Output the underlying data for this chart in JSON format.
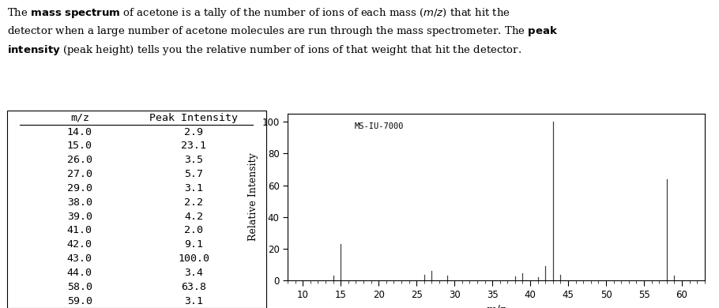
{
  "mz_values": [
    14.0,
    15.0,
    26.0,
    27.0,
    29.0,
    38.0,
    39.0,
    41.0,
    42.0,
    43.0,
    44.0,
    58.0,
    59.0
  ],
  "intensities": [
    2.9,
    23.1,
    3.5,
    5.7,
    3.1,
    2.2,
    4.2,
    2.0,
    9.1,
    100.0,
    3.4,
    63.8,
    3.1
  ],
  "table_mz": [
    "m/z",
    "14.0",
    "15.0",
    "26.0",
    "27.0",
    "29.0",
    "38.0",
    "39.0",
    "41.0",
    "42.0",
    "43.0",
    "44.0",
    "58.0",
    "59.0"
  ],
  "table_intensity": [
    "Peak Intensity",
    "2.9",
    "23.1",
    "3.5",
    "5.7",
    "3.1",
    "2.2",
    "4.2",
    "2.0",
    "9.1",
    "100.0",
    "3.4",
    "63.8",
    "3.1"
  ],
  "xlabel": "m/z",
  "ylabel": "Relative Intensity",
  "xlim": [
    8,
    63
  ],
  "ylim": [
    0,
    105
  ],
  "yticks": [
    0,
    20,
    40,
    60,
    80,
    100
  ],
  "xticks": [
    10,
    15,
    20,
    25,
    30,
    35,
    40,
    45,
    50,
    55,
    60
  ],
  "annotation": "MS-IU-7000",
  "bar_color": "#404040",
  "background_color": "#ffffff"
}
